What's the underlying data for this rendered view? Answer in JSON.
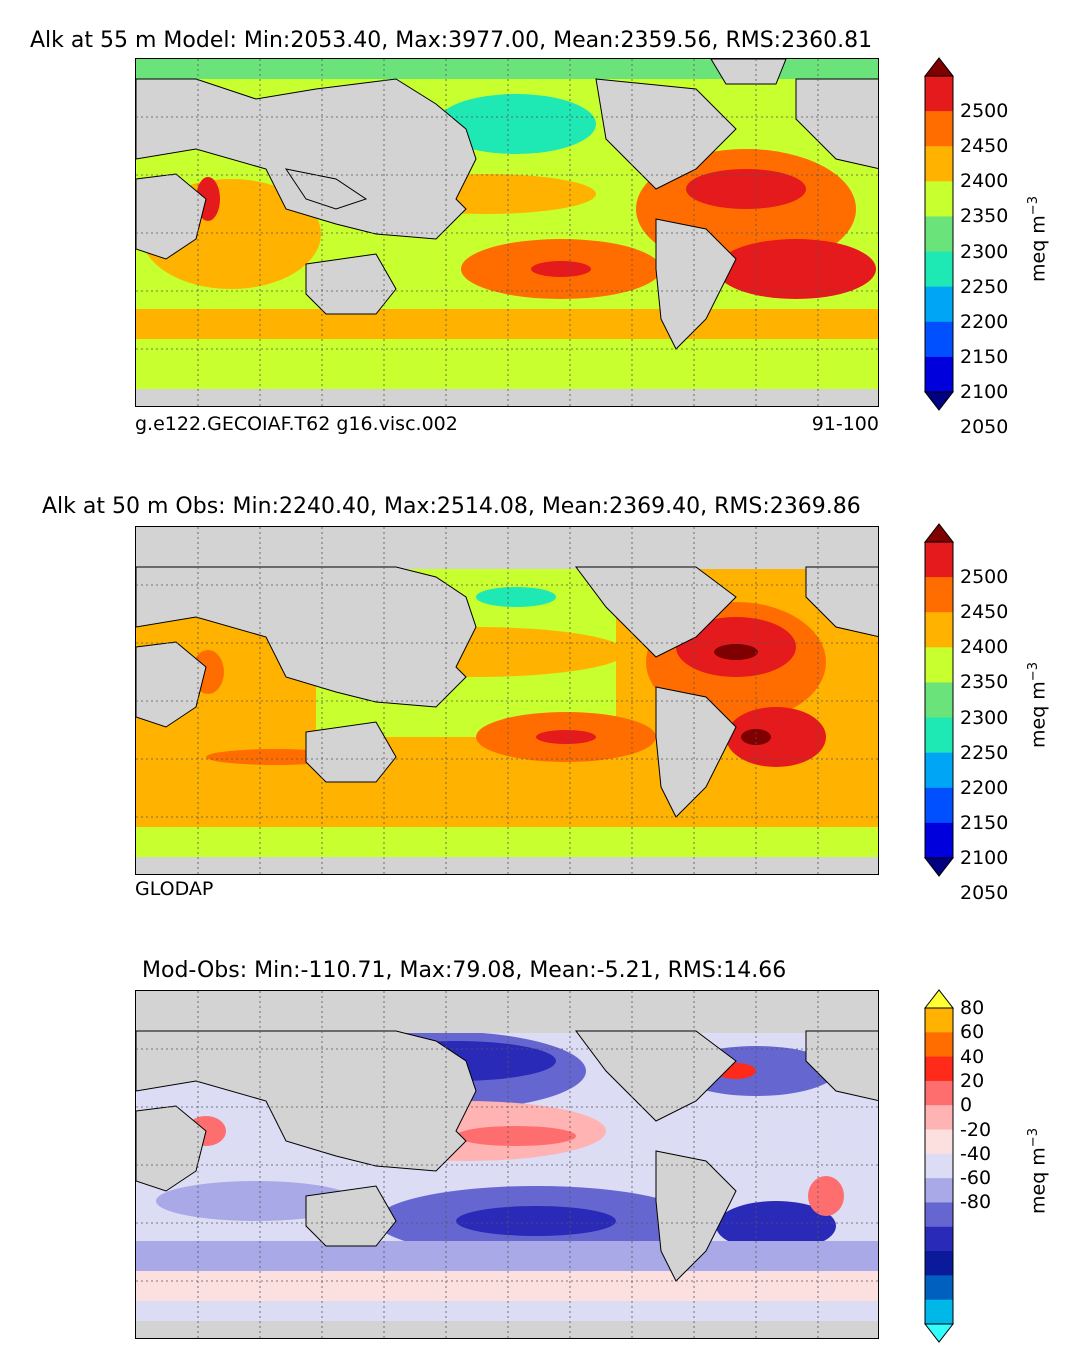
{
  "chart_data": [
    {
      "type": "heatmap",
      "title": "Alk at 55 m Model: Min:2053.40, Max:3977.00, Mean:2359.56, RMS:2360.81",
      "caption_left": "g.e122.GECOIAF.T62 g16.visc.002",
      "caption_right": "91-100",
      "unit_label": "meq m",
      "unit_sup": "−3",
      "colorbar_ticks": [
        2500,
        2450,
        2400,
        2350,
        2300,
        2250,
        2200,
        2150,
        2100,
        2050
      ],
      "colorbar_colors": [
        "#7f0000",
        "#e41a1c",
        "#ff6d00",
        "#ffb300",
        "#c8ff2e",
        "#6ae47a",
        "#1ee8b4",
        "#00a6f5",
        "#0050ff",
        "#0000dc",
        "#000080"
      ],
      "stats": {
        "min": 2053.4,
        "max": 3977.0,
        "mean": 2359.56,
        "rms": 2360.81
      }
    },
    {
      "type": "heatmap",
      "title": "Alk at 50 m Obs: Min:2240.40, Max:2514.08, Mean:2369.40, RMS:2369.86",
      "caption_left": "GLODAP",
      "caption_right": "",
      "unit_label": "meq m",
      "unit_sup": "−3",
      "colorbar_ticks": [
        2500,
        2450,
        2400,
        2350,
        2300,
        2250,
        2200,
        2150,
        2100,
        2050
      ],
      "colorbar_colors": [
        "#7f0000",
        "#e41a1c",
        "#ff6d00",
        "#ffb300",
        "#c8ff2e",
        "#6ae47a",
        "#1ee8b4",
        "#00a6f5",
        "#0050ff",
        "#0000dc",
        "#000080"
      ],
      "stats": {
        "min": 2240.4,
        "max": 2514.08,
        "mean": 2369.4,
        "rms": 2369.86
      }
    },
    {
      "type": "heatmap",
      "title": "Mod-Obs: Min:-110.71, Max:79.08, Mean:-5.21, RMS:14.66",
      "caption_left": "",
      "caption_right": "",
      "unit_label": "meq m",
      "unit_sup": "−3",
      "colorbar_ticks": [
        80,
        60,
        40,
        20,
        0,
        -20,
        -40,
        -60,
        -80
      ],
      "colorbar_colors": [
        "#ffff33",
        "#ffb300",
        "#ff6d00",
        "#ff2a1a",
        "#ff6e6e",
        "#ffb3b3",
        "#fce0e0",
        "#dcdcf5",
        "#a9a9e8",
        "#6666d0",
        "#2a2ab8",
        "#0a1a9a",
        "#0060c0",
        "#00b8e8",
        "#33ffff"
      ],
      "stats": {
        "min": -110.71,
        "max": 79.08,
        "mean": -5.21,
        "rms": 14.66
      }
    }
  ]
}
